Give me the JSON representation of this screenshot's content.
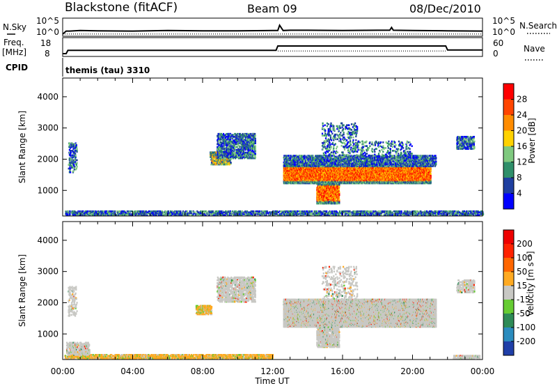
{
  "header": {
    "station": "Blackstone (fitACF)",
    "beam": "Beam 09",
    "date": "08/Dec/2010"
  },
  "chart_data": [
    {
      "type": "line",
      "panel": "noise",
      "left_label": "N.Sky",
      "right_label": "N.Search",
      "left_ticks": [
        "10^5",
        "10^0"
      ],
      "right_ticks": [
        "10^5",
        "10^0"
      ],
      "series": [
        {
          "name": "N.Sky",
          "style": "solid",
          "x": [
            0,
            0.2,
            0.4,
            1,
            2,
            4,
            6,
            8,
            10,
            12,
            12.3,
            12.4,
            12.6,
            13,
            14,
            16,
            18,
            18.7,
            18.8,
            18.9,
            20,
            22,
            24
          ],
          "y": [
            0,
            1.1,
            1.1,
            1.3,
            1.2,
            1.1,
            1.3,
            1.2,
            1.2,
            1.3,
            1.3,
            3.2,
            1.3,
            1.4,
            1.4,
            1.3,
            1.4,
            1.4,
            2.4,
            1.4,
            1.3,
            1.2,
            1.1
          ]
        },
        {
          "name": "N.Search",
          "style": "dotted",
          "x": [
            0,
            24
          ],
          "y": [
            0.05,
            0.05
          ]
        }
      ]
    },
    {
      "type": "line",
      "panel": "frequency",
      "left_label": "Freq.",
      "left_unit": "[MHz]",
      "left_ticks": [
        18,
        8
      ],
      "right_label": "Nave",
      "right_ticks": [
        60,
        0
      ],
      "series": [
        {
          "name": "Freq",
          "style": "solid",
          "x": [
            0,
            0.2,
            0.3,
            12.2,
            12.3,
            21.9,
            22,
            24
          ],
          "y": [
            8,
            8,
            10.5,
            10.5,
            13.8,
            13.8,
            10.8,
            10.8
          ]
        },
        {
          "name": "Nave",
          "style": "dotted",
          "x": [
            12.3,
            21.9
          ],
          "y": [
            10,
            10
          ]
        }
      ]
    },
    {
      "type": "text",
      "panel": "cpid",
      "label": "CPID",
      "value": "themis (tau) 3310"
    },
    {
      "type": "heatmap",
      "panel": "power",
      "ylabel": "Slant Range [km]",
      "ylim": [
        180,
        4600
      ],
      "yticks": [
        1000,
        2000,
        3000,
        4000
      ],
      "xlim": [
        0,
        24
      ],
      "colorbar": {
        "label": "Power [dB]",
        "ticks": [
          "4",
          "8",
          "12",
          "16",
          "20",
          "24",
          "28"
        ],
        "colors": [
          "#0000ff",
          "#1f3fa0",
          "#2f8f6a",
          "#7fc97f",
          "#ffd200",
          "#ff8c00",
          "#ff4500",
          "#ff0000"
        ]
      },
      "regions": [
        {
          "t0": 0.1,
          "t1": 24,
          "r0": 180,
          "r1": 330,
          "density": 0.38,
          "level": "low"
        },
        {
          "t0": 0.3,
          "t1": 0.8,
          "r0": 1550,
          "r1": 2500,
          "density": 0.25,
          "level": "low"
        },
        {
          "t0": 8.4,
          "t1": 9.6,
          "r0": 1800,
          "r1": 2200,
          "density": 0.45,
          "level": "mid"
        },
        {
          "t0": 8.8,
          "t1": 11.0,
          "r0": 2000,
          "r1": 2800,
          "density": 0.35,
          "level": "low"
        },
        {
          "t0": 12.6,
          "t1": 21.0,
          "r0": 1200,
          "r1": 1800,
          "density": 0.85,
          "level": "high"
        },
        {
          "t0": 12.6,
          "t1": 21.3,
          "r0": 1750,
          "r1": 2100,
          "density": 0.45,
          "level": "low"
        },
        {
          "t0": 14.5,
          "t1": 15.8,
          "r0": 550,
          "r1": 1200,
          "density": 0.55,
          "level": "high"
        },
        {
          "t0": 14.8,
          "t1": 16.8,
          "r0": 2100,
          "r1": 3150,
          "density": 0.12,
          "level": "low"
        },
        {
          "t0": 16.8,
          "t1": 20.0,
          "r0": 2000,
          "r1": 2550,
          "density": 0.1,
          "level": "low"
        },
        {
          "t0": 22.5,
          "t1": 23.5,
          "r0": 2300,
          "r1": 2700,
          "density": 0.35,
          "level": "low"
        }
      ]
    },
    {
      "type": "heatmap",
      "panel": "velocity",
      "ylabel": "Slant Range [km]",
      "ylim": [
        180,
        4600
      ],
      "yticks": [
        1000,
        2000,
        3000,
        4000
      ],
      "xlim": [
        0,
        24
      ],
      "xticks": [
        "00:00",
        "04:00",
        "08:00",
        "12:00",
        "16:00",
        "20:00",
        "00:00"
      ],
      "xlabel": "Time UT",
      "colorbar": {
        "label": "Velocity [m s⁻¹]",
        "ticks": [
          "200",
          "100",
          "50",
          "15",
          "-15",
          "-50",
          "-100",
          "-200"
        ],
        "colors": [
          "#1f3fa8",
          "#2b8cbe",
          "#2e8b57",
          "#66cc33",
          "#c8c8c4",
          "#ffaa22",
          "#ff6600",
          "#ff2200",
          "#ee0000"
        ]
      },
      "regions": [
        {
          "t0": 0.1,
          "t1": 12.0,
          "r0": 180,
          "r1": 330,
          "density": 0.45,
          "level": "orange"
        },
        {
          "t0": 0.2,
          "t1": 1.5,
          "r0": 300,
          "r1": 700,
          "density": 0.35,
          "level": "gray"
        },
        {
          "t0": 0.3,
          "t1": 0.8,
          "r0": 1550,
          "r1": 2500,
          "density": 0.2,
          "level": "gray"
        },
        {
          "t0": 7.6,
          "t1": 8.5,
          "r0": 1600,
          "r1": 1900,
          "density": 0.6,
          "level": "orange"
        },
        {
          "t0": 8.8,
          "t1": 11.0,
          "r0": 2000,
          "r1": 2800,
          "density": 0.35,
          "level": "gray"
        },
        {
          "t0": 12.6,
          "t1": 21.3,
          "r0": 1200,
          "r1": 2100,
          "density": 0.88,
          "level": "gray"
        },
        {
          "t0": 14.5,
          "t1": 15.8,
          "r0": 550,
          "r1": 1200,
          "density": 0.5,
          "level": "gray"
        },
        {
          "t0": 14.8,
          "t1": 16.8,
          "r0": 2100,
          "r1": 3150,
          "density": 0.1,
          "level": "gray"
        },
        {
          "t0": 22.3,
          "t1": 23.8,
          "r0": 180,
          "r1": 300,
          "density": 0.5,
          "level": "gray"
        },
        {
          "t0": 22.5,
          "t1": 23.5,
          "r0": 2300,
          "r1": 2700,
          "density": 0.3,
          "level": "gray"
        }
      ]
    }
  ]
}
